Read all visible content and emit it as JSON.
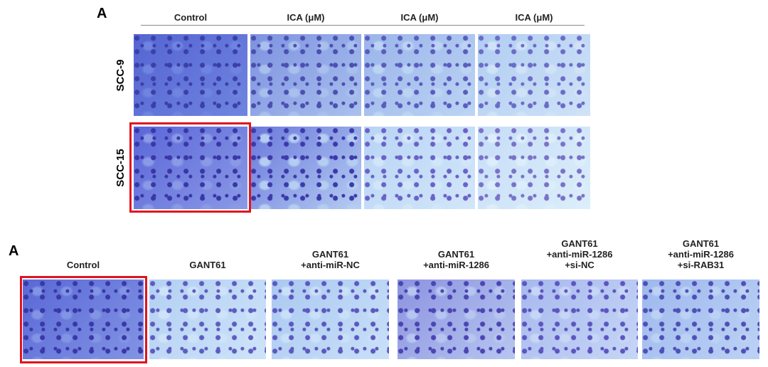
{
  "top_panel": {
    "label": "A",
    "columns": [
      "Control",
      "ICA (μM)",
      "ICA (μM)",
      "ICA (μM)"
    ],
    "rows": [
      "SCC-9",
      "SCC-15"
    ]
  },
  "bottom_panel": {
    "label": "A",
    "columns": [
      [
        "Control"
      ],
      [
        "GANT61"
      ],
      [
        "GANT61",
        "+anti-miR-NC"
      ],
      [
        "GANT61",
        "+anti-miR-1286"
      ],
      [
        "GANT61",
        "+anti-miR-1286",
        "+si-NC"
      ],
      [
        "GANT61",
        "+anti-miR-1286",
        "+si-RAB31"
      ]
    ]
  }
}
